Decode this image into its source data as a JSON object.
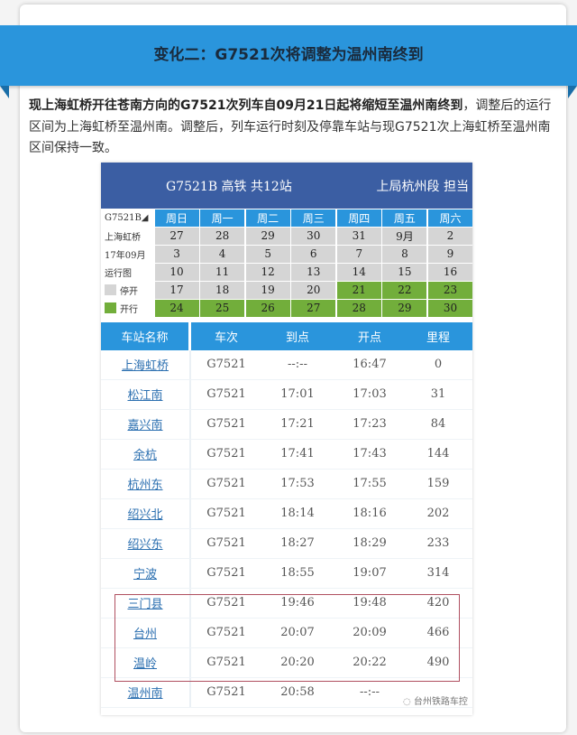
{
  "banner": {
    "title": "变化二：G7521次将调整为温州南终到"
  },
  "paragraph": {
    "bold": "现上海虹桥开往苍南方向的G7521次列车自09月21日起将缩短至温州南终到",
    "rest": "，调整后的运行区间为上海虹桥至温州南。调整后，列车运行时刻及停靠车站与现G7521次上海虹桥至温州南区间保持一致。"
  },
  "timetable": {
    "header_left": "G7521B 高铁 共12站",
    "header_right": "上局杭州段 担当",
    "calendar": {
      "weekdays": [
        "周日",
        "周一",
        "周二",
        "周三",
        "周四",
        "周五",
        "周六"
      ],
      "row_labels": [
        "G7521B◢",
        "上海虹桥",
        "17年09月",
        "运行图",
        "停开",
        "开行"
      ],
      "weeks": [
        [
          "27",
          "28",
          "29",
          "30",
          "31",
          "9月",
          "2"
        ],
        [
          "3",
          "4",
          "5",
          "6",
          "7",
          "8",
          "9"
        ],
        [
          "10",
          "11",
          "12",
          "13",
          "14",
          "15",
          "16"
        ],
        [
          "17",
          "18",
          "19",
          "20",
          "21",
          "22",
          "23"
        ],
        [
          "24",
          "25",
          "26",
          "27",
          "28",
          "29",
          "30"
        ]
      ],
      "running_from_index": 25,
      "colors": {
        "off": "#d5d5d5",
        "on": "#72ae3b"
      }
    },
    "columns": [
      "车站名称",
      "车次",
      "到点",
      "开点",
      "里程"
    ],
    "rows": [
      [
        "上海虹桥",
        "G7521",
        "--:--",
        "16:47",
        "0"
      ],
      [
        "松江南",
        "G7521",
        "17:01",
        "17:03",
        "31"
      ],
      [
        "嘉兴南",
        "G7521",
        "17:21",
        "17:23",
        "84"
      ],
      [
        "余杭",
        "G7521",
        "17:41",
        "17:43",
        "144"
      ],
      [
        "杭州东",
        "G7521",
        "17:53",
        "17:55",
        "159"
      ],
      [
        "绍兴北",
        "G7521",
        "18:14",
        "18:16",
        "202"
      ],
      [
        "绍兴东",
        "G7521",
        "18:27",
        "18:29",
        "233"
      ],
      [
        "宁波",
        "G7521",
        "18:55",
        "19:07",
        "314"
      ],
      [
        "三门县",
        "G7521",
        "19:46",
        "19:48",
        "420"
      ],
      [
        "台州",
        "G7521",
        "20:07",
        "20:09",
        "466"
      ],
      [
        "温岭",
        "G7521",
        "20:20",
        "20:22",
        "490"
      ],
      [
        "温州南",
        "G7521",
        "20:58",
        "--:--",
        ""
      ]
    ],
    "highlighted_rows": [
      "三门县",
      "台州",
      "温岭"
    ],
    "watermark": "台州铁路车控"
  }
}
